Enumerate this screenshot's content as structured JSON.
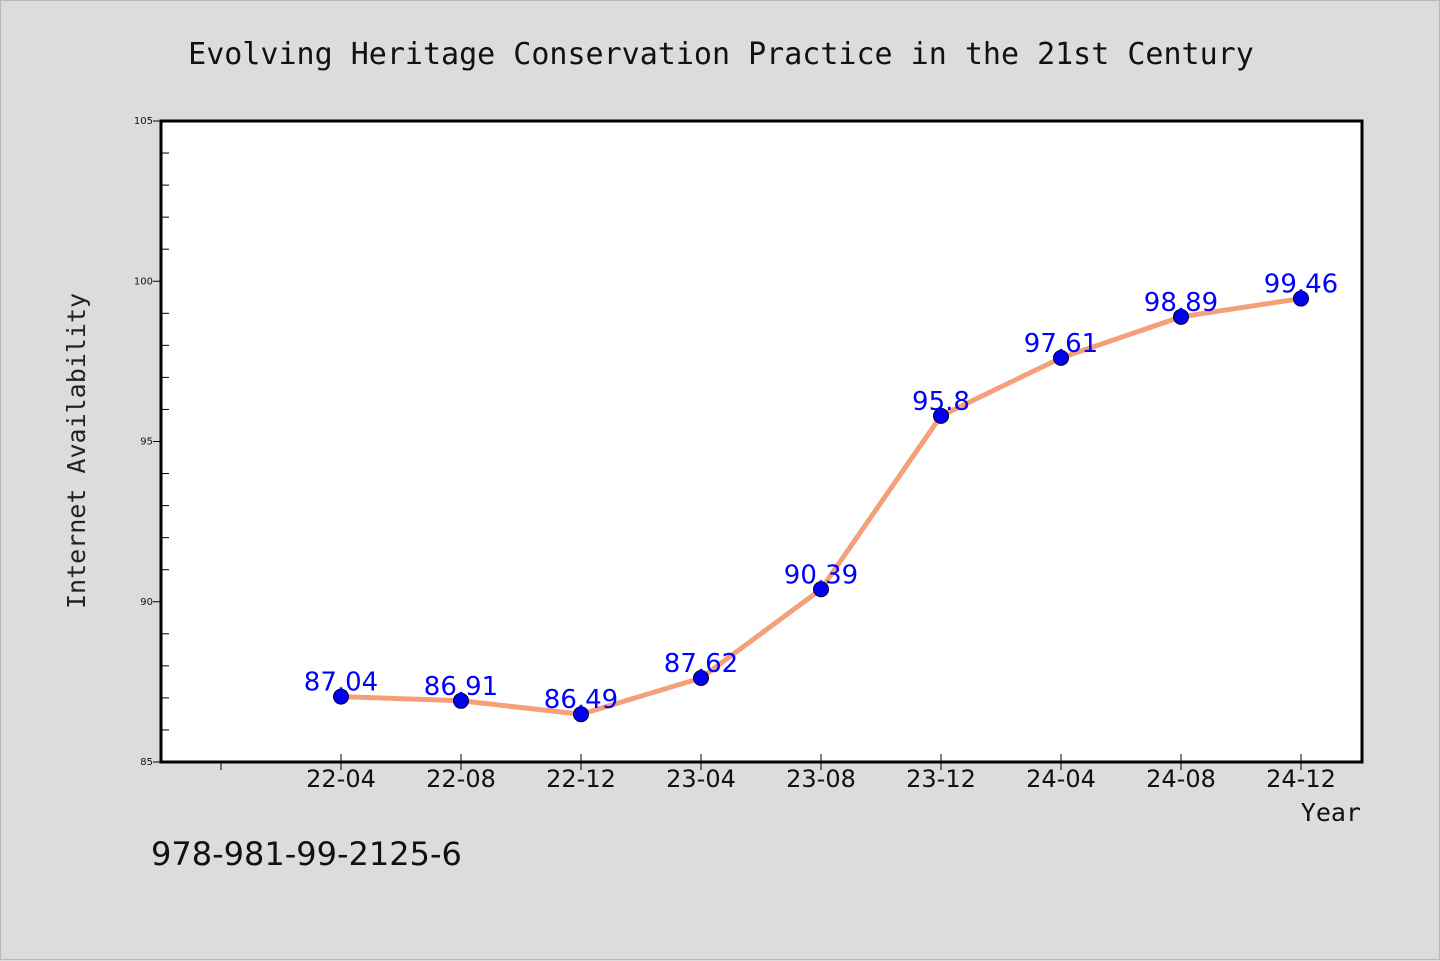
{
  "chart_data": {
    "type": "line",
    "title": "Evolving Heritage Conservation Practice in the 21st Century",
    "xlabel": "Year",
    "ylabel": "Internet Availability",
    "categories": [
      "22-04",
      "22-08",
      "22-12",
      "23-04",
      "23-08",
      "23-12",
      "24-04",
      "24-08",
      "24-12"
    ],
    "series": [
      {
        "values": [
          87.04,
          86.91,
          86.49,
          87.62,
          90.39,
          95.8,
          97.61,
          98.89,
          99.46
        ],
        "data_labels": [
          "87.04",
          "86.91",
          "86.49",
          "87.62",
          "90.39",
          "95.8",
          "97.61",
          "98.89",
          "99.46"
        ],
        "line_color": "#f4a07a",
        "marker_color": "#0000ee",
        "label_color": "#0000ff"
      }
    ],
    "ylim": [
      85,
      105
    ],
    "yticks": [
      85,
      90,
      95,
      100,
      105
    ],
    "grid": false,
    "legend": "none"
  },
  "annotation": {
    "isbn": "978-981-99-2125-6"
  },
  "colors": {
    "background": "#dcdcdc",
    "plot_background": "#ffffff",
    "axis": "#000000"
  }
}
